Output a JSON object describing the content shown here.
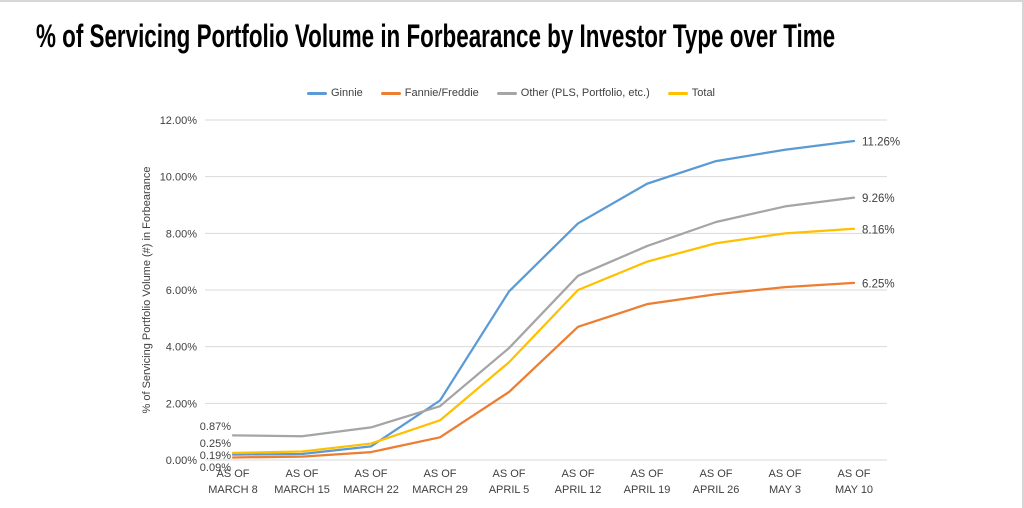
{
  "window": {
    "background_color": "#ffffff",
    "border_color": "#d6d6d6"
  },
  "chart_data": {
    "type": "line",
    "title": "% of Servicing Portfolio Volume in Forbearance by Investor Type over Time",
    "ylabel": "% of Servicing Portfolio Volume (#) in Forbearance",
    "xlabel": "",
    "ylim": [
      0,
      12
    ],
    "ytick_values": [
      0,
      2,
      4,
      6,
      8,
      10,
      12
    ],
    "ytick_labels": [
      "0.00%",
      "2.00%",
      "4.00%",
      "6.00%",
      "8.00%",
      "10.00%",
      "12.00%"
    ],
    "grid": true,
    "gridline_color": "#D9D9D9",
    "text_color": "#404040",
    "legend_position": "top-center",
    "categories": [
      "AS OF MARCH 8",
      "AS OF MARCH 15",
      "AS OF MARCH 22",
      "AS OF MARCH 29",
      "AS OF APRIL 5",
      "AS OF APRIL 12",
      "AS OF APRIL 19",
      "AS OF APRIL 26",
      "AS OF MAY 3",
      "AS OF MAY 10"
    ],
    "series": [
      {
        "name": "Ginnie",
        "color": "#5B9BD5",
        "values": [
          0.19,
          0.21,
          0.48,
          2.1,
          5.95,
          8.35,
          9.75,
          10.55,
          10.95,
          11.26
        ],
        "start_label": "0.19%",
        "end_label": "11.26%"
      },
      {
        "name": "Fannie/Freddie",
        "color": "#ED7D31",
        "values": [
          0.09,
          0.12,
          0.28,
          0.8,
          2.4,
          4.7,
          5.5,
          5.85,
          6.1,
          6.25
        ],
        "start_label": "0.09%",
        "end_label": "6.25%"
      },
      {
        "name": "Other (PLS, Portfolio, etc.)",
        "color": "#A5A5A5",
        "values": [
          0.87,
          0.84,
          1.15,
          1.9,
          3.95,
          6.5,
          7.55,
          8.4,
          8.95,
          9.26
        ],
        "start_label": "0.87%",
        "end_label": "9.26%"
      },
      {
        "name": "Total",
        "color": "#FFC000",
        "values": [
          0.25,
          0.3,
          0.58,
          1.4,
          3.45,
          6.0,
          7.0,
          7.65,
          8.0,
          8.16
        ],
        "start_label": "0.25%",
        "end_label": "8.16%"
      }
    ]
  }
}
